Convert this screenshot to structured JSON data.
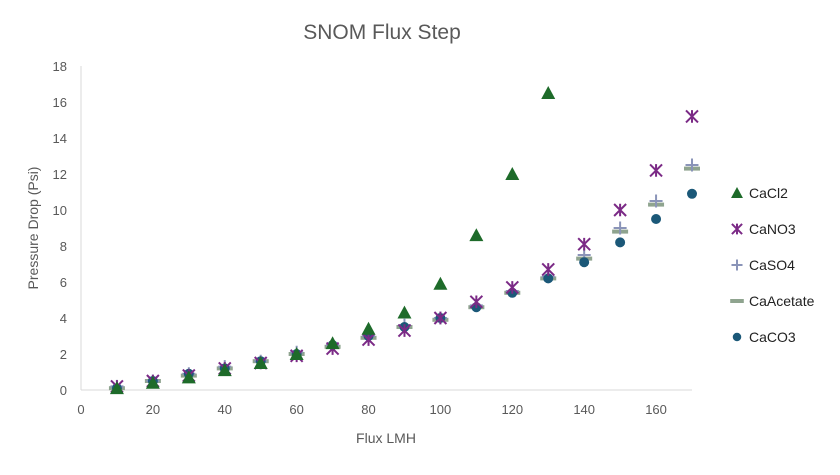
{
  "chart_data": {
    "type": "scatter",
    "title": "SNOM Flux Step",
    "xlabel": "Flux LMH",
    "ylabel": "Pressure Drop (Psi)",
    "xlim": [
      0,
      170
    ],
    "ylim": [
      0,
      18
    ],
    "x_ticks": [
      0,
      20,
      40,
      60,
      80,
      100,
      120,
      140,
      160
    ],
    "y_ticks": [
      0,
      2,
      4,
      6,
      8,
      10,
      12,
      14,
      16,
      18
    ],
    "grid": false,
    "legend_position": "right",
    "series": [
      {
        "name": "CaCl2",
        "marker": "triangle",
        "color": "#1e6b2a",
        "x": [
          10,
          20,
          30,
          40,
          50,
          60,
          70,
          80,
          90,
          100,
          110,
          120,
          130
        ],
        "y": [
          0.1,
          0.4,
          0.7,
          1.1,
          1.5,
          2.0,
          2.6,
          3.4,
          4.3,
          5.9,
          8.6,
          12.0,
          16.5
        ]
      },
      {
        "name": "CaNO3",
        "marker": "star",
        "color": "#7b2a86",
        "x": [
          10,
          20,
          30,
          40,
          50,
          60,
          70,
          80,
          90,
          100,
          110,
          120,
          130,
          140,
          150,
          160,
          170
        ],
        "y": [
          0.2,
          0.5,
          0.8,
          1.2,
          1.5,
          1.9,
          2.3,
          2.8,
          3.3,
          4.0,
          4.9,
          5.7,
          6.7,
          8.1,
          10.0,
          12.2,
          15.2
        ]
      },
      {
        "name": "CaSO4",
        "marker": "plus",
        "color": "#8a94b8",
        "x": [
          10,
          20,
          30,
          40,
          50,
          60,
          70,
          80,
          90,
          100,
          110,
          120,
          130,
          140,
          150,
          160,
          170
        ],
        "y": [
          0.2,
          0.5,
          0.9,
          1.3,
          1.6,
          2.1,
          2.5,
          3.0,
          3.6,
          4.0,
          4.7,
          5.5,
          6.3,
          7.5,
          9.0,
          10.5,
          12.5
        ]
      },
      {
        "name": "CaAcetate",
        "marker": "dash",
        "color": "#8fa48f",
        "x": [
          10,
          20,
          30,
          40,
          50,
          60,
          70,
          80,
          90,
          100,
          110,
          120,
          130,
          140,
          150,
          160,
          170
        ],
        "y": [
          0.1,
          0.5,
          0.8,
          1.2,
          1.6,
          2.0,
          2.4,
          2.9,
          3.5,
          3.9,
          4.6,
          5.4,
          6.2,
          7.3,
          8.8,
          10.3,
          12.3
        ]
      },
      {
        "name": "CaCO3",
        "marker": "circle",
        "color": "#1b5878",
        "x": [
          10,
          20,
          30,
          40,
          50,
          60,
          70,
          80,
          90,
          100,
          110,
          120,
          130,
          140,
          150,
          160,
          170
        ],
        "y": [
          0.1,
          0.5,
          0.9,
          1.2,
          1.6,
          2.0,
          2.5,
          3.0,
          3.5,
          4.0,
          4.6,
          5.4,
          6.2,
          7.1,
          8.2,
          9.5,
          10.9
        ]
      }
    ]
  }
}
